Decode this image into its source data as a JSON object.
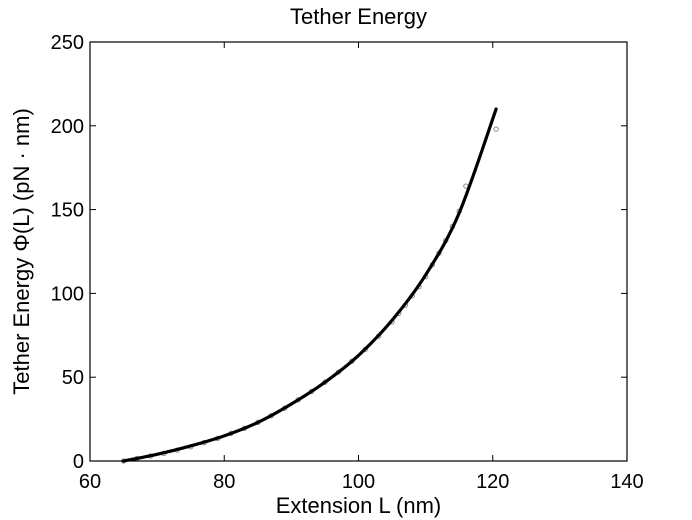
{
  "chart_data": {
    "type": "line",
    "title": "Tether Energy",
    "xlabel": "Extension L (nm)",
    "ylabel": "Tether Energy Φ(L) (pN · nm)",
    "xlim": [
      60,
      140
    ],
    "ylim": [
      0,
      250
    ],
    "xticks": [
      60,
      80,
      100,
      120,
      140
    ],
    "yticks": [
      0,
      50,
      100,
      150,
      200,
      250
    ],
    "grid": false,
    "colors": {
      "fit_line": "#000000",
      "markers": "#808080"
    },
    "series": [
      {
        "kind": "line",
        "x": [
          65,
          70,
          75,
          80,
          85,
          90,
          95,
          100,
          105,
          110,
          115,
          120.5
        ],
        "y": [
          0,
          4,
          9,
          15,
          23,
          34,
          47,
          63,
          84,
          111,
          148,
          210
        ]
      },
      {
        "kind": "scatter",
        "x": [
          65,
          67,
          69,
          71,
          73,
          75,
          77,
          79,
          81,
          83,
          85,
          87,
          89,
          91,
          93,
          95,
          97,
          99,
          101,
          103,
          105,
          106,
          107,
          108,
          109,
          110,
          111,
          112,
          113,
          114,
          115,
          116,
          120.5
        ],
        "y": [
          0,
          1.5,
          3,
          4.5,
          6.5,
          8.5,
          11,
          13.5,
          16.5,
          19.5,
          23,
          27,
          31.5,
          36.5,
          41.5,
          47,
          53,
          59.5,
          66.5,
          74.5,
          83,
          88,
          93,
          98.5,
          104,
          110,
          117,
          124,
          131.5,
          140,
          149,
          164,
          198
        ]
      }
    ]
  }
}
